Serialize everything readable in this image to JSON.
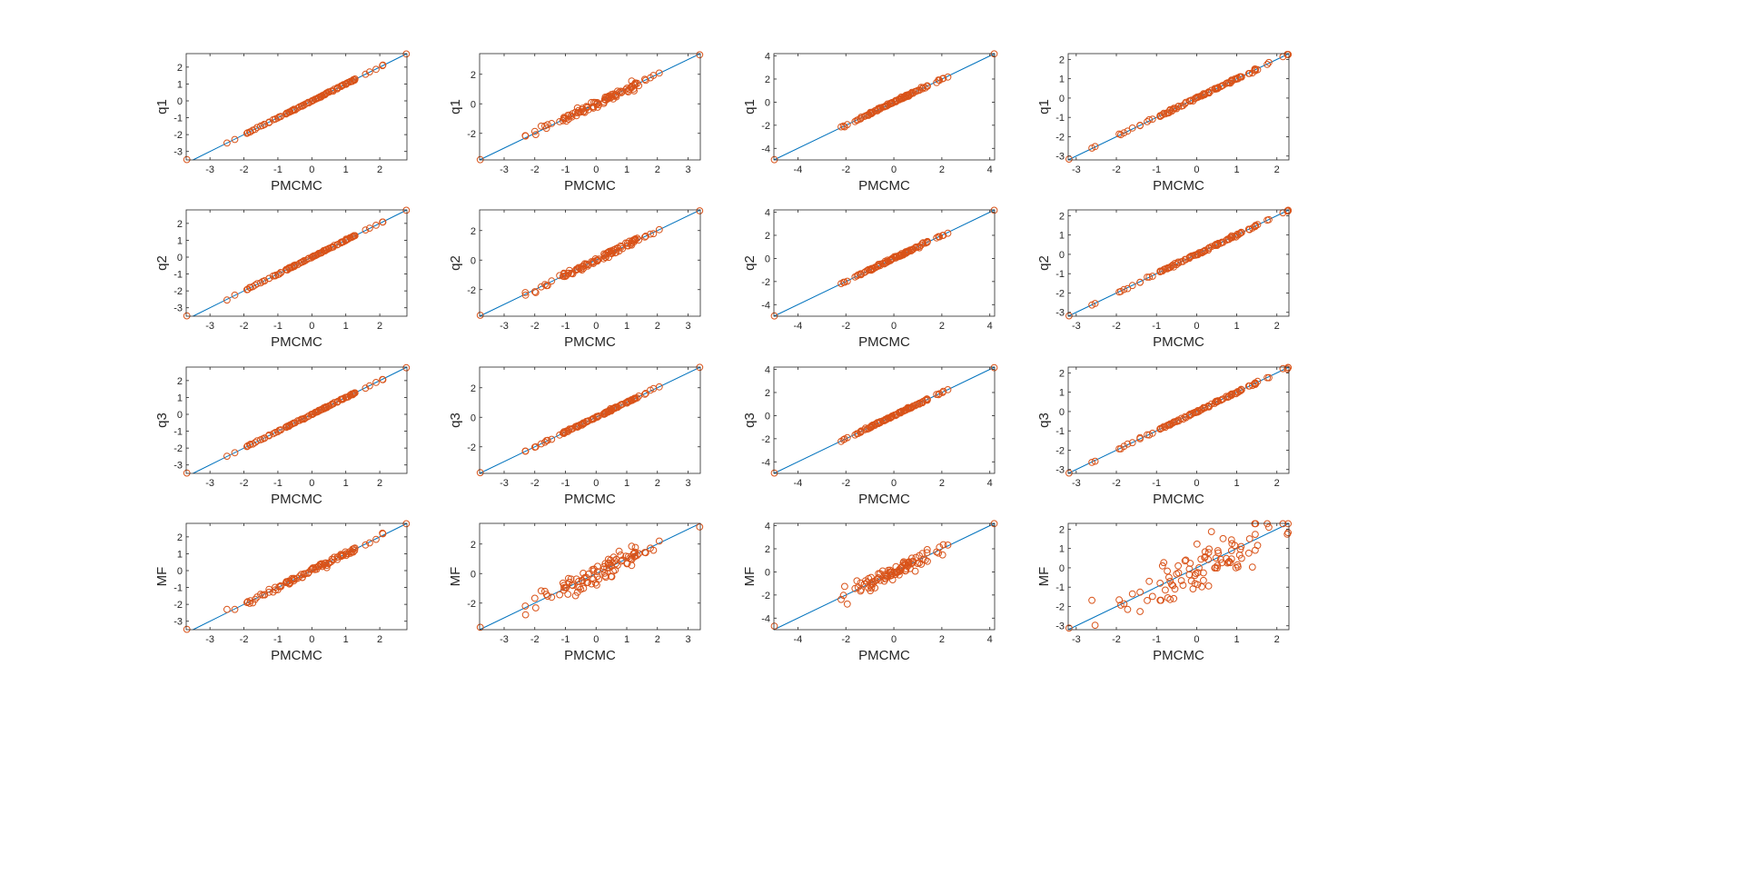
{
  "figure": {
    "background": "#ffffff",
    "marker_color": "#d95319",
    "line_color": "#0072bd",
    "axes_color": "#262626"
  },
  "chart_data": [
    {
      "type": "scatter",
      "xlabel": "PMCMC",
      "ylabel": "q1",
      "xlim": [
        -3.7,
        2.8
      ],
      "ylim": [
        -3.5,
        2.8
      ],
      "xticks": [
        -3,
        -2,
        -1,
        0,
        1,
        2
      ],
      "yticks": [
        -3,
        -2,
        -1,
        0,
        1,
        2
      ],
      "xtick_labels": [
        "-3",
        "-2",
        "-1",
        "0",
        "1",
        "2"
      ],
      "ytick_labels": [
        "-3",
        "-2",
        "-1",
        "0",
        "1",
        "2"
      ],
      "reference_line": "y = x",
      "spread": 0.02,
      "points": []
    },
    {
      "type": "scatter",
      "xlabel": "PMCMC",
      "ylabel": "q1",
      "xlim": [
        -3.8,
        3.4
      ],
      "ylim": [
        -3.8,
        3.4
      ],
      "xticks": [
        -3,
        -2,
        -1,
        0,
        1,
        2,
        3
      ],
      "yticks": [
        -2,
        0,
        2
      ],
      "xtick_labels": [
        "-3",
        "-2",
        "-1",
        "0",
        "1",
        "2",
        "3"
      ],
      "ytick_labels": [
        "-2",
        "0",
        "2"
      ],
      "reference_line": "y = x",
      "spread": 0.15,
      "points": []
    },
    {
      "type": "scatter",
      "xlabel": "PMCMC",
      "ylabel": "q1",
      "xlim": [
        -5.0,
        4.2
      ],
      "ylim": [
        -5.0,
        4.2
      ],
      "xticks": [
        -4,
        -2,
        0,
        2,
        4
      ],
      "yticks": [
        -4,
        -2,
        0,
        2,
        4
      ],
      "xtick_labels": [
        "-4",
        "-2",
        "0",
        "2",
        "4"
      ],
      "ytick_labels": [
        "-4",
        "-2",
        "0",
        "2",
        "4"
      ],
      "reference_line": "y = x",
      "spread": 0.05,
      "points": []
    },
    {
      "type": "scatter",
      "xlabel": "PMCMC",
      "ylabel": "q1",
      "xlim": [
        -3.2,
        2.3
      ],
      "ylim": [
        -3.2,
        2.3
      ],
      "xticks": [
        -3,
        -2,
        -1,
        0,
        1,
        2
      ],
      "yticks": [
        -3,
        -2,
        -1,
        0,
        1,
        2
      ],
      "xtick_labels": [
        "-3",
        "-2",
        "-1",
        "0",
        "1",
        "2"
      ],
      "ytick_labels": [
        "-3",
        "-2",
        "-1",
        "0",
        "1",
        "2"
      ],
      "reference_line": "y = x",
      "spread": 0.03,
      "points": []
    },
    {
      "type": "scatter",
      "xlabel": "PMCMC",
      "ylabel": "q2",
      "xlim": [
        -3.7,
        2.8
      ],
      "ylim": [
        -3.5,
        2.8
      ],
      "xticks": [
        -3,
        -2,
        -1,
        0,
        1,
        2
      ],
      "yticks": [
        -3,
        -2,
        -1,
        0,
        1,
        2
      ],
      "xtick_labels": [
        "-3",
        "-2",
        "-1",
        "0",
        "1",
        "2"
      ],
      "ytick_labels": [
        "-3",
        "-2",
        "-1",
        "0",
        "1",
        "2"
      ],
      "reference_line": "y = x",
      "spread": 0.02,
      "points": []
    },
    {
      "type": "scatter",
      "xlabel": "PMCMC",
      "ylabel": "q2",
      "xlim": [
        -3.8,
        3.4
      ],
      "ylim": [
        -3.8,
        3.4
      ],
      "xticks": [
        -3,
        -2,
        -1,
        0,
        1,
        2,
        3
      ],
      "yticks": [
        -2,
        0,
        2
      ],
      "xtick_labels": [
        "-3",
        "-2",
        "-1",
        "0",
        "1",
        "2",
        "3"
      ],
      "ytick_labels": [
        "-2",
        "0",
        "2"
      ],
      "reference_line": "y = x",
      "spread": 0.12,
      "points": []
    },
    {
      "type": "scatter",
      "xlabel": "PMCMC",
      "ylabel": "q2",
      "xlim": [
        -5.0,
        4.2
      ],
      "ylim": [
        -5.0,
        4.2
      ],
      "xticks": [
        -4,
        -2,
        0,
        2,
        4
      ],
      "yticks": [
        -4,
        -2,
        0,
        2,
        4
      ],
      "xtick_labels": [
        "-4",
        "-2",
        "0",
        "2",
        "4"
      ],
      "ytick_labels": [
        "-4",
        "-2",
        "0",
        "2",
        "4"
      ],
      "reference_line": "y = x",
      "spread": 0.05,
      "points": []
    },
    {
      "type": "scatter",
      "xlabel": "PMCMC",
      "ylabel": "q2",
      "xlim": [
        -3.2,
        2.3
      ],
      "ylim": [
        -3.2,
        2.3
      ],
      "xticks": [
        -3,
        -2,
        -1,
        0,
        1,
        2
      ],
      "yticks": [
        -3,
        -2,
        -1,
        0,
        1,
        2
      ],
      "xtick_labels": [
        "-3",
        "-2",
        "-1",
        "0",
        "1",
        "2"
      ],
      "ytick_labels": [
        "-3",
        "-2",
        "-1",
        "0",
        "1",
        "2"
      ],
      "reference_line": "y = x",
      "spread": 0.03,
      "points": []
    },
    {
      "type": "scatter",
      "xlabel": "PMCMC",
      "ylabel": "q3",
      "xlim": [
        -3.7,
        2.8
      ],
      "ylim": [
        -3.5,
        2.8
      ],
      "xticks": [
        -3,
        -2,
        -1,
        0,
        1,
        2
      ],
      "yticks": [
        -3,
        -2,
        -1,
        0,
        1,
        2
      ],
      "xtick_labels": [
        "-3",
        "-2",
        "-1",
        "0",
        "1",
        "2"
      ],
      "ytick_labels": [
        "-3",
        "-2",
        "-1",
        "0",
        "1",
        "2"
      ],
      "reference_line": "y = x",
      "spread": 0.02,
      "points": []
    },
    {
      "type": "scatter",
      "xlabel": "PMCMC",
      "ylabel": "q3",
      "xlim": [
        -3.8,
        3.4
      ],
      "ylim": [
        -3.8,
        3.4
      ],
      "xticks": [
        -3,
        -2,
        -1,
        0,
        1,
        2,
        3
      ],
      "yticks": [
        -2,
        0,
        2
      ],
      "xtick_labels": [
        "-3",
        "-2",
        "-1",
        "0",
        "1",
        "2",
        "3"
      ],
      "ytick_labels": [
        "-2",
        "0",
        "2"
      ],
      "reference_line": "y = x",
      "spread": 0.03,
      "points": []
    },
    {
      "type": "scatter",
      "xlabel": "PMCMC",
      "ylabel": "q3",
      "xlim": [
        -5.0,
        4.2
      ],
      "ylim": [
        -5.0,
        4.2
      ],
      "xticks": [
        -4,
        -2,
        0,
        2,
        4
      ],
      "yticks": [
        -4,
        -2,
        0,
        2,
        4
      ],
      "xtick_labels": [
        "-4",
        "-2",
        "0",
        "2",
        "4"
      ],
      "ytick_labels": [
        "-4",
        "-2",
        "0",
        "2",
        "4"
      ],
      "reference_line": "y = x",
      "spread": 0.04,
      "points": []
    },
    {
      "type": "scatter",
      "xlabel": "PMCMC",
      "ylabel": "q3",
      "xlim": [
        -3.2,
        2.3
      ],
      "ylim": [
        -3.2,
        2.3
      ],
      "xticks": [
        -3,
        -2,
        -1,
        0,
        1,
        2
      ],
      "yticks": [
        -3,
        -2,
        -1,
        0,
        1,
        2
      ],
      "xtick_labels": [
        "-3",
        "-2",
        "-1",
        "0",
        "1",
        "2"
      ],
      "ytick_labels": [
        "-3",
        "-2",
        "-1",
        "0",
        "1",
        "2"
      ],
      "reference_line": "y = x",
      "spread": 0.03,
      "points": []
    },
    {
      "type": "scatter",
      "xlabel": "PMCMC",
      "ylabel": "MF",
      "xlim": [
        -3.7,
        2.8
      ],
      "ylim": [
        -3.5,
        2.8
      ],
      "xticks": [
        -3,
        -2,
        -1,
        0,
        1,
        2
      ],
      "yticks": [
        -3,
        -2,
        -1,
        0,
        1,
        2
      ],
      "xtick_labels": [
        "-3",
        "-2",
        "-1",
        "0",
        "1",
        "2"
      ],
      "ytick_labels": [
        "-3",
        "-2",
        "-1",
        "0",
        "1",
        "2"
      ],
      "reference_line": "y = x",
      "spread": 0.1,
      "points": []
    },
    {
      "type": "scatter",
      "xlabel": "PMCMC",
      "ylabel": "MF",
      "xlim": [
        -3.8,
        3.4
      ],
      "ylim": [
        -3.8,
        3.4
      ],
      "xticks": [
        -3,
        -2,
        -1,
        0,
        1,
        2,
        3
      ],
      "yticks": [
        -2,
        0,
        2
      ],
      "xtick_labels": [
        "-3",
        "-2",
        "-1",
        "0",
        "1",
        "2",
        "3"
      ],
      "ytick_labels": [
        "-2",
        "0",
        "2"
      ],
      "reference_line": "y = x",
      "spread": 0.35,
      "points": []
    },
    {
      "type": "scatter",
      "xlabel": "PMCMC",
      "ylabel": "MF",
      "xlim": [
        -5.0,
        4.2
      ],
      "ylim": [
        -5.0,
        4.2
      ],
      "xticks": [
        -4,
        -2,
        0,
        2,
        4
      ],
      "yticks": [
        -4,
        -2,
        0,
        2,
        4
      ],
      "xtick_labels": [
        "-4",
        "-2",
        "0",
        "2",
        "4"
      ],
      "ytick_labels": [
        "-4",
        "-2",
        "0",
        "2",
        "4"
      ],
      "reference_line": "y = x",
      "spread": 0.35,
      "points": []
    },
    {
      "type": "scatter",
      "xlabel": "PMCMC",
      "ylabel": "MF",
      "xlim": [
        -3.2,
        2.3
      ],
      "ylim": [
        -3.2,
        2.3
      ],
      "xticks": [
        -3,
        -2,
        -1,
        0,
        1,
        2
      ],
      "yticks": [
        -3,
        -2,
        -1,
        0,
        1,
        2
      ],
      "xtick_labels": [
        "-3",
        "-2",
        "-1",
        "0",
        "1",
        "2"
      ],
      "ytick_labels": [
        "-3",
        "-2",
        "-1",
        "0",
        "1",
        "2"
      ],
      "reference_line": "y = x",
      "spread": 0.6,
      "points": []
    }
  ]
}
